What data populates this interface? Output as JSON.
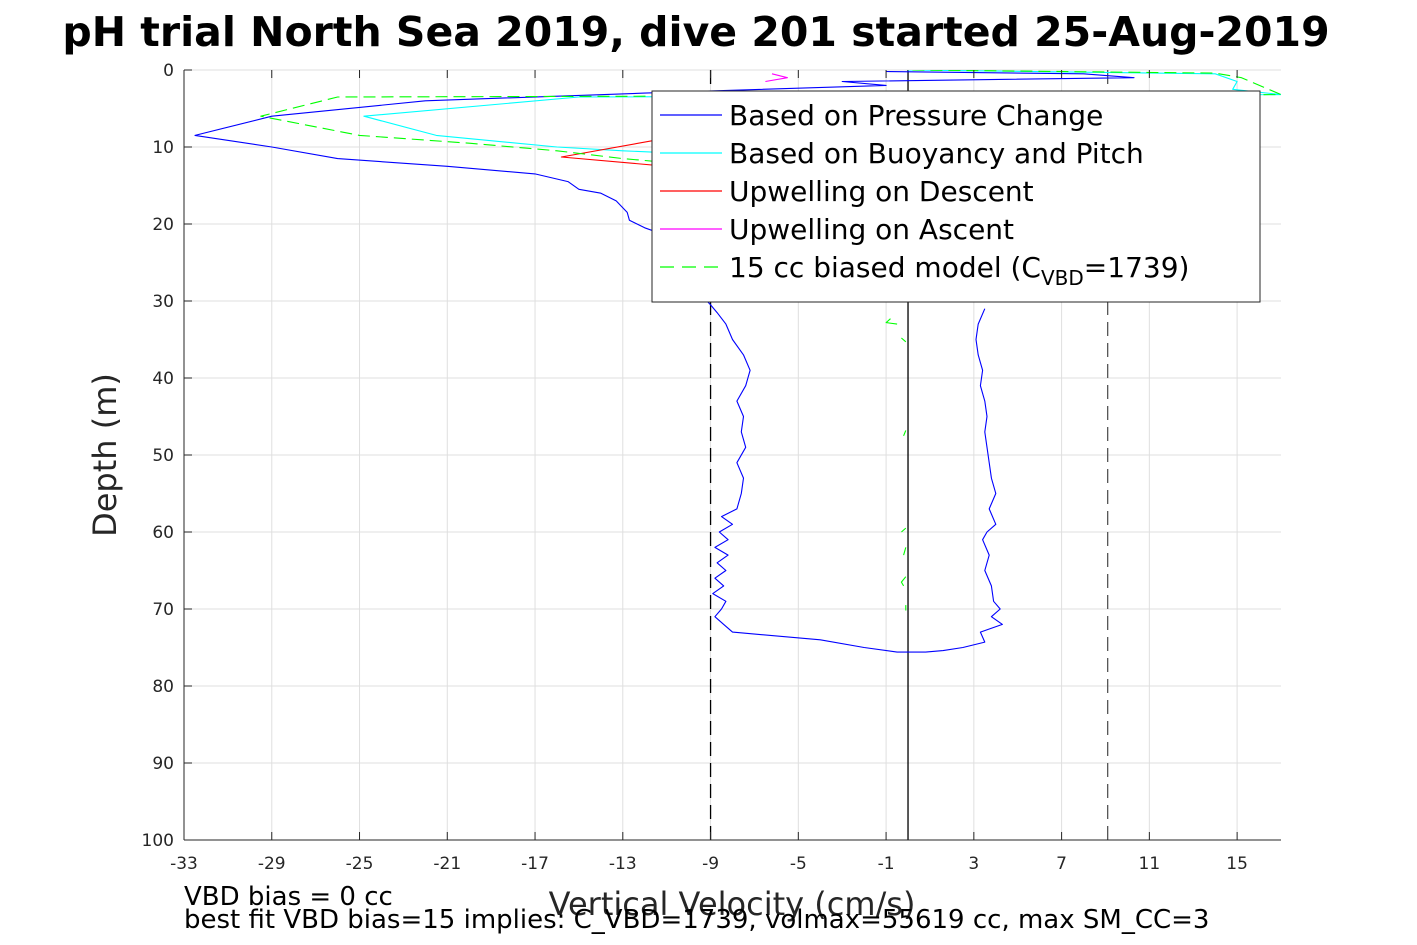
{
  "chart_data": {
    "type": "line",
    "title": "pH trial North Sea 2019, dive 201 started 25-Aug-2019",
    "xlabel": "Vertical Velocity (cm/s)",
    "ylabel": "Depth (m)",
    "xlim": [
      -33,
      17
    ],
    "ylim": [
      0,
      100
    ],
    "y_reversed": true,
    "grid": true,
    "xticks": [
      -33,
      -29,
      -25,
      -21,
      -17,
      -13,
      -9,
      -5,
      -1,
      3,
      7,
      11,
      15
    ],
    "yticks": [
      0,
      10,
      20,
      30,
      40,
      50,
      60,
      70,
      80,
      90,
      100
    ],
    "legend_position": "top-right",
    "reference_lines": [
      {
        "x": -9.0,
        "style": "dashed",
        "color": "#000000"
      },
      {
        "x": 0.0,
        "style": "solid",
        "color": "#000000"
      },
      {
        "x": 9.1,
        "style": "dashed",
        "color": "#555555"
      }
    ],
    "series": [
      {
        "name": "Based on Pressure Change",
        "color": "#0000ff",
        "dash": "solid",
        "points": [
          [
            -1,
            0.2
          ],
          [
            8,
            0.5
          ],
          [
            10.3,
            1
          ],
          [
            -3,
            1.5
          ],
          [
            -1,
            2
          ],
          [
            -12,
            3
          ],
          [
            -22,
            4
          ],
          [
            -29,
            6
          ],
          [
            -32.5,
            8.5
          ],
          [
            -29,
            10
          ],
          [
            -26,
            11.5
          ],
          [
            -21,
            12.5
          ],
          [
            -17,
            13.5
          ],
          [
            -15.5,
            14.5
          ],
          [
            -15,
            15.5
          ],
          [
            -14,
            16
          ],
          [
            -13.3,
            17
          ],
          [
            -12.8,
            18.5
          ],
          [
            -12.7,
            19.5
          ],
          [
            -12,
            20.5
          ],
          [
            -11,
            21.5
          ],
          [
            -10.5,
            22.5
          ],
          [
            -11.5,
            23.5
          ],
          [
            -10.5,
            25
          ],
          [
            -10,
            27
          ],
          [
            -9.5,
            29
          ],
          [
            -9.0,
            30.5
          ],
          [
            -8.7,
            31.5
          ],
          [
            -8.3,
            33
          ],
          [
            -8.0,
            35
          ],
          [
            -7.5,
            37
          ],
          [
            -7.2,
            39
          ],
          [
            -7.4,
            41
          ],
          [
            -7.8,
            43
          ],
          [
            -7.5,
            45
          ],
          [
            -7.6,
            47
          ],
          [
            -7.4,
            49
          ],
          [
            -7.8,
            51
          ],
          [
            -7.5,
            53
          ],
          [
            -7.6,
            55
          ],
          [
            -7.8,
            57
          ],
          [
            -8.5,
            58
          ],
          [
            -8.0,
            59
          ],
          [
            -8.6,
            60
          ],
          [
            -8.2,
            61
          ],
          [
            -8.8,
            62
          ],
          [
            -8.2,
            63
          ],
          [
            -8.7,
            64
          ],
          [
            -8.3,
            65
          ],
          [
            -8.8,
            66
          ],
          [
            -8.4,
            67
          ],
          [
            -8.9,
            68
          ],
          [
            -8.3,
            69
          ],
          [
            -8.5,
            70
          ],
          [
            -8.8,
            71
          ],
          [
            -8.4,
            72
          ],
          [
            -8.0,
            73
          ],
          [
            -4,
            74
          ],
          [
            -2,
            75
          ],
          [
            -0.5,
            75.6
          ],
          [
            0.8,
            75.6
          ],
          [
            1.6,
            75.4
          ],
          [
            2.5,
            75
          ],
          [
            3.5,
            74.3
          ],
          [
            3.3,
            73
          ],
          [
            4.3,
            72
          ],
          [
            3.8,
            71
          ],
          [
            4.2,
            70
          ],
          [
            3.9,
            69
          ],
          [
            3.8,
            67
          ],
          [
            3.5,
            65
          ],
          [
            3.7,
            63
          ],
          [
            3.4,
            61
          ],
          [
            3.6,
            60
          ],
          [
            4.0,
            59
          ],
          [
            3.7,
            57
          ],
          [
            4.0,
            55
          ],
          [
            3.8,
            53
          ],
          [
            3.7,
            51
          ],
          [
            3.6,
            49
          ],
          [
            3.5,
            47
          ],
          [
            3.6,
            45
          ],
          [
            3.5,
            43
          ],
          [
            3.3,
            41
          ],
          [
            3.4,
            39
          ],
          [
            3.2,
            37
          ],
          [
            3.1,
            35
          ],
          [
            3.2,
            33
          ],
          [
            3.5,
            31
          ]
        ]
      },
      {
        "name": "Based on Buoyancy and Pitch",
        "color": "#00ffff",
        "dash": "solid",
        "points": [
          [
            0,
            0
          ],
          [
            14,
            0.5
          ],
          [
            15,
            1.5
          ],
          [
            14.8,
            2.5
          ],
          [
            17,
            3.2
          ],
          [
            -15,
            3.5
          ],
          [
            -24.8,
            6
          ],
          [
            -21.5,
            8.5
          ],
          [
            -16,
            10
          ],
          [
            -13,
            10.5
          ],
          [
            -9,
            11
          ],
          [
            -8,
            11.5
          ]
        ]
      },
      {
        "name": "Upwelling on Descent",
        "color": "#ff0000",
        "dash": "solid",
        "points": [
          [
            -10.3,
            8.5
          ],
          [
            -15.8,
            11.3
          ],
          [
            -11,
            12.5
          ]
        ]
      },
      {
        "name": "Upwelling on Ascent",
        "color": "#ff00ff",
        "dash": "solid",
        "points": [
          [
            -6.2,
            0.5
          ],
          [
            -5.5,
            1
          ],
          [
            -6.5,
            1.5
          ]
        ]
      },
      {
        "name": "15 cc biased model (C_VBD=1739)",
        "color": "#00ff00",
        "dash": "dashed",
        "points": [
          [
            0.2,
            0
          ],
          [
            14,
            0.4
          ],
          [
            15.2,
            1
          ],
          [
            17,
            3.2
          ],
          [
            -26,
            3.5
          ],
          [
            -29.5,
            6
          ],
          [
            -25,
            8.5
          ],
          [
            -20,
            9.5
          ],
          [
            -16,
            10.5
          ],
          [
            -13,
            11.5
          ],
          [
            -11,
            12
          ]
        ]
      },
      {
        "name": "",
        "color": "#00ff00",
        "dash": "solid",
        "points": [
          [
            -0.8,
            32.3
          ],
          [
            -1,
            32.8
          ],
          [
            -0.5,
            33
          ]
        ]
      },
      {
        "name": "",
        "color": "#00ff00",
        "dash": "solid",
        "points": [
          [
            -0.3,
            34.8
          ],
          [
            -0.1,
            35.3
          ]
        ]
      },
      {
        "name": "",
        "color": "#00ff00",
        "dash": "solid",
        "points": [
          [
            -0.1,
            46.8
          ],
          [
            -0.2,
            47.5
          ]
        ]
      },
      {
        "name": "",
        "color": "#00ff00",
        "dash": "solid",
        "points": [
          [
            -0.1,
            59.5
          ],
          [
            -0.3,
            60
          ]
        ]
      },
      {
        "name": "",
        "color": "#00ff00",
        "dash": "solid",
        "points": [
          [
            -0.1,
            62
          ],
          [
            -0.2,
            63
          ]
        ]
      },
      {
        "name": "",
        "color": "#00ff00",
        "dash": "solid",
        "points": [
          [
            -0.1,
            65.8
          ],
          [
            -0.3,
            66.5
          ],
          [
            -0.2,
            67
          ]
        ]
      },
      {
        "name": "",
        "color": "#00ff00",
        "dash": "solid",
        "points": [
          [
            -0.1,
            69.5
          ],
          [
            -0.1,
            70.2
          ]
        ]
      }
    ],
    "legend": [
      {
        "label": "Based on Pressure Change",
        "color": "#0000ff",
        "dash": "solid"
      },
      {
        "label": "Based on Buoyancy and Pitch",
        "color": "#00ffff",
        "dash": "solid"
      },
      {
        "label": "Upwelling on Descent",
        "color": "#ff0000",
        "dash": "solid"
      },
      {
        "label": "Upwelling on Ascent",
        "color": "#ff00ff",
        "dash": "solid"
      },
      {
        "label": "15 cc biased model (C",
        "sub": "VBD",
        "post": "=1739)",
        "color": "#00ff00",
        "dash": "dashed"
      }
    ],
    "annotations": [
      "VBD bias = 0 cc",
      "best fit VBD bias=15 implies: C_VBD=1739, volmax=55619 cc, max SM_CC=3"
    ]
  }
}
